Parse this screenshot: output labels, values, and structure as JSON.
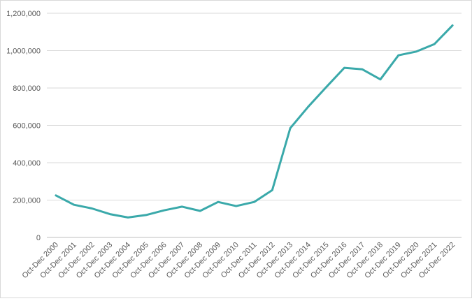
{
  "chart_data": {
    "type": "line",
    "title": "",
    "xlabel": "",
    "ylabel": "",
    "ylim": [
      0,
      1200000
    ],
    "y_ticks": [
      0,
      200000,
      400000,
      600000,
      800000,
      1000000,
      1200000
    ],
    "y_tick_labels": [
      "0",
      "200,000",
      "400,000",
      "600,000",
      "800,000",
      "1,000,000",
      "1,200,000"
    ],
    "grid": true,
    "legend": "none",
    "line_color": "#3aa9aa",
    "categories": [
      "Oct-Dec 2000",
      "Oct-Dec 2001",
      "Oct-Dec 2002",
      "Oct-Dec 2003",
      "Oct-Dec 2004",
      "Oct-Dec 2005",
      "Oct-Dec 2006",
      "Oct-Dec 2007",
      "Oct-Dec 2008",
      "Oct-Dec 2009",
      "Oct-Dec 2010",
      "Oct-Dec 2011",
      "Oct-Dec 2012",
      "Oct-Dec 2013",
      "Oct-Dec 2014",
      "Oct-Dec 2015",
      "Oct-Dec 2016",
      "Oct-Dec 2017",
      "Oct-Dec 2018",
      "Oct-Dec 2019",
      "Oct-Dec 2020",
      "Oct-Dec 2021",
      "Oct-Dec 2022"
    ],
    "values": [
      225000,
      175000,
      155000,
      125000,
      107000,
      120000,
      145000,
      165000,
      142000,
      190000,
      168000,
      190000,
      253000,
      585000,
      700000,
      805000,
      908000,
      900000,
      846000,
      975000,
      995000,
      1035000,
      1135000
    ]
  }
}
